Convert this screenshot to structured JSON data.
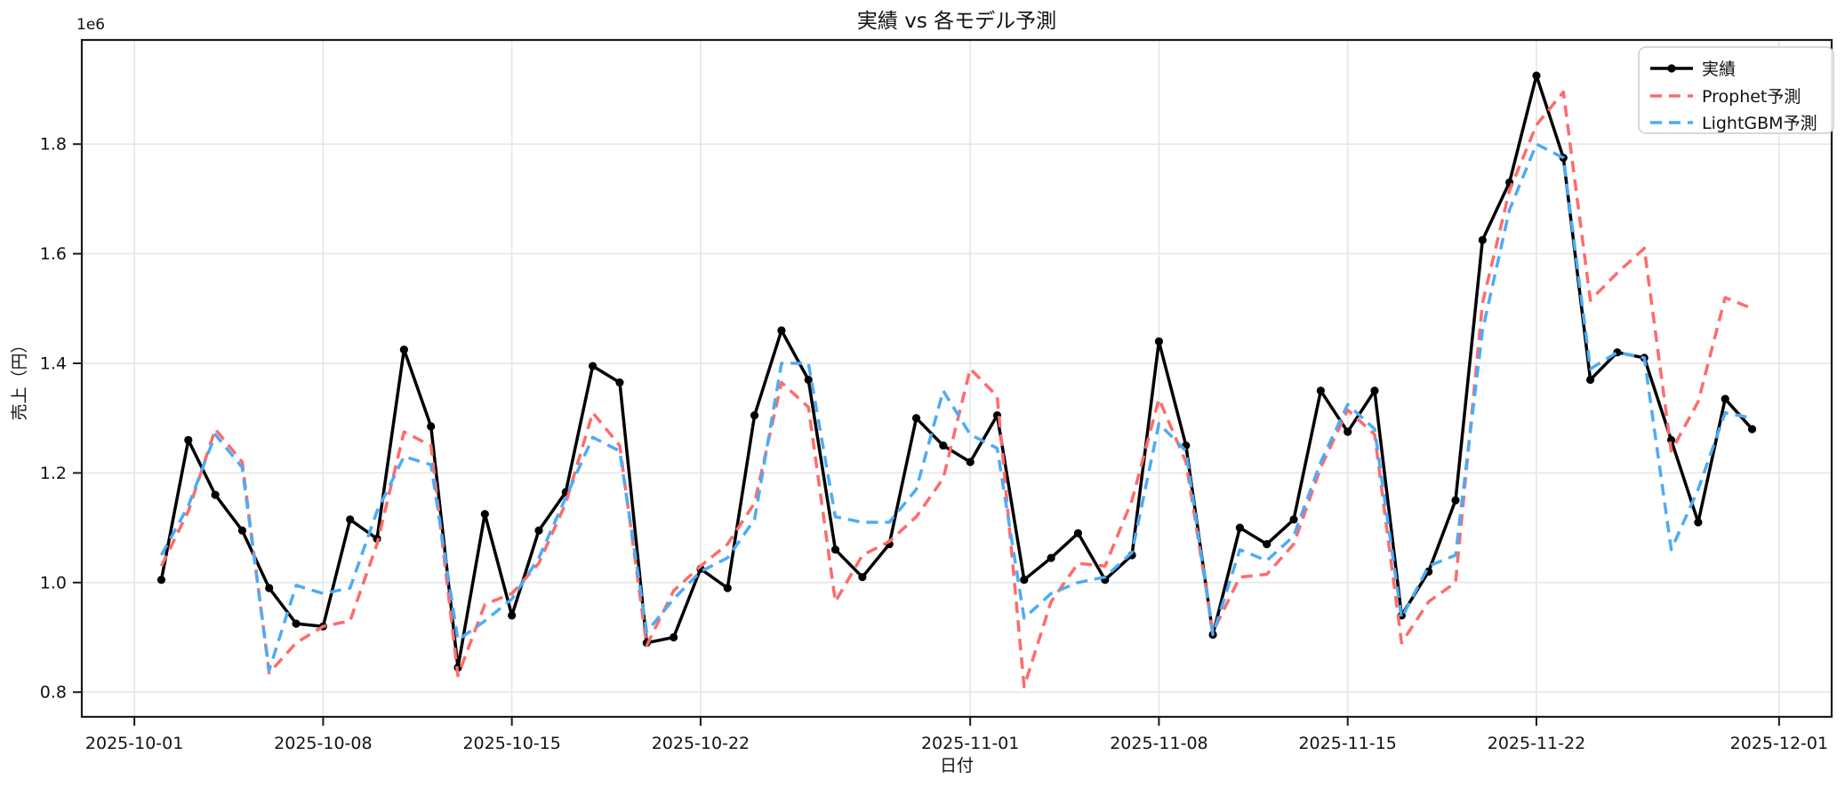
{
  "figure": {
    "title": "実績 vs 各モデル予測",
    "background": "#ffffff"
  },
  "chart_data": {
    "type": "line",
    "title": "実績 vs 各モデル予測",
    "xlabel": "日付",
    "ylabel": "売上（円）",
    "offset_label": "1e6",
    "grid": true,
    "legend_position": "upper-right",
    "x_start": "2025-10-01",
    "xlim_days": [
      -1.95,
      62.95
    ],
    "ylim": [
      755000,
      1990000
    ],
    "y_ticks": [
      800000,
      1000000,
      1200000,
      1400000,
      1600000,
      1800000
    ],
    "y_tick_labels": [
      "0.8",
      "1.0",
      "1.2",
      "1.4",
      "1.6",
      "1.8"
    ],
    "x_tick_dates": [
      "2025-10-01",
      "2025-10-08",
      "2025-10-15",
      "2025-10-22",
      "2025-11-01",
      "2025-11-08",
      "2025-11-15",
      "2025-11-22",
      "2025-12-01"
    ],
    "x_tick_labels": [
      "2025-10-01",
      "2025-10-08",
      "2025-10-15",
      "2025-10-22",
      "2025-11-01",
      "2025-11-08",
      "2025-11-15",
      "2025-11-22",
      "2025-12-01"
    ],
    "dates": [
      "2025-10-02",
      "2025-10-03",
      "2025-10-04",
      "2025-10-05",
      "2025-10-06",
      "2025-10-07",
      "2025-10-08",
      "2025-10-09",
      "2025-10-10",
      "2025-10-11",
      "2025-10-12",
      "2025-10-13",
      "2025-10-14",
      "2025-10-15",
      "2025-10-16",
      "2025-10-17",
      "2025-10-18",
      "2025-10-19",
      "2025-10-20",
      "2025-10-21",
      "2025-10-22",
      "2025-10-23",
      "2025-10-24",
      "2025-10-25",
      "2025-10-26",
      "2025-10-27",
      "2025-10-28",
      "2025-10-29",
      "2025-10-30",
      "2025-10-31",
      "2025-11-01",
      "2025-11-02",
      "2025-11-03",
      "2025-11-04",
      "2025-11-05",
      "2025-11-06",
      "2025-11-07",
      "2025-11-08",
      "2025-11-09",
      "2025-11-10",
      "2025-11-11",
      "2025-11-12",
      "2025-11-13",
      "2025-11-14",
      "2025-11-15",
      "2025-11-16",
      "2025-11-17",
      "2025-11-18",
      "2025-11-19",
      "2025-11-20",
      "2025-11-21",
      "2025-11-22",
      "2025-11-23",
      "2025-11-24",
      "2025-11-25",
      "2025-11-26",
      "2025-11-27",
      "2025-11-28",
      "2025-11-29",
      "2025-11-30"
    ],
    "series": [
      {
        "name": "実績",
        "color": "#000000",
        "style": "solid",
        "marker": "circle",
        "values": [
          1005000,
          1260000,
          1160000,
          1095000,
          990000,
          925000,
          920000,
          1115000,
          1080000,
          1425000,
          1285000,
          845000,
          1125000,
          940000,
          1095000,
          1165000,
          1395000,
          1365000,
          890000,
          900000,
          1025000,
          990000,
          1305000,
          1460000,
          1370000,
          1060000,
          1010000,
          1070000,
          1300000,
          1250000,
          1220000,
          1305000,
          1005000,
          1045000,
          1090000,
          1005000,
          1050000,
          1440000,
          1250000,
          905000,
          1100000,
          1070000,
          1115000,
          1350000,
          1275000,
          1350000,
          940000,
          1020000,
          1150000,
          1625000,
          1730000,
          1925000,
          1775000,
          1370000,
          1420000,
          1410000,
          1260000,
          1110000,
          1335000,
          1280000
        ]
      },
      {
        "name": "Prophet予測",
        "color": "#ff6b6b",
        "style": "dashed",
        "marker": "none",
        "values": [
          1030000,
          1130000,
          1280000,
          1220000,
          835000,
          890000,
          920000,
          930000,
          1070000,
          1275000,
          1250000,
          830000,
          960000,
          980000,
          1035000,
          1145000,
          1310000,
          1250000,
          885000,
          985000,
          1030000,
          1070000,
          1145000,
          1365000,
          1320000,
          965000,
          1050000,
          1075000,
          1120000,
          1190000,
          1390000,
          1340000,
          810000,
          965000,
          1035000,
          1030000,
          1150000,
          1335000,
          1220000,
          910000,
          1010000,
          1015000,
          1070000,
          1210000,
          1315000,
          1270000,
          890000,
          965000,
          1000000,
          1510000,
          1715000,
          1835000,
          1895000,
          1515000,
          1565000,
          1610000,
          1240000,
          1330000,
          1520000,
          1500000
        ]
      },
      {
        "name": "LightGBM予測",
        "color": "#4dabf7",
        "style": "dashed",
        "marker": "none",
        "values": [
          1050000,
          1140000,
          1270000,
          1210000,
          840000,
          995000,
          980000,
          990000,
          1130000,
          1230000,
          1215000,
          895000,
          930000,
          970000,
          1045000,
          1155000,
          1265000,
          1240000,
          910000,
          970000,
          1020000,
          1045000,
          1115000,
          1400000,
          1400000,
          1120000,
          1110000,
          1110000,
          1170000,
          1350000,
          1270000,
          1245000,
          935000,
          980000,
          1000000,
          1010000,
          1055000,
          1290000,
          1240000,
          905000,
          1060000,
          1040000,
          1085000,
          1220000,
          1325000,
          1280000,
          935000,
          1030000,
          1050000,
          1460000,
          1680000,
          1800000,
          1775000,
          1390000,
          1420000,
          1410000,
          1060000,
          1170000,
          1310000,
          1300000
        ]
      }
    ],
    "legend": {
      "entries": [
        "実績",
        "Prophet予測",
        "LightGBM予測"
      ]
    },
    "colors": {
      "grid": "#e6e6e6",
      "spine": "#1a1a1a",
      "actual": "#000000",
      "prophet": "#ff6b6b",
      "lightgbm": "#4dabf7"
    }
  }
}
